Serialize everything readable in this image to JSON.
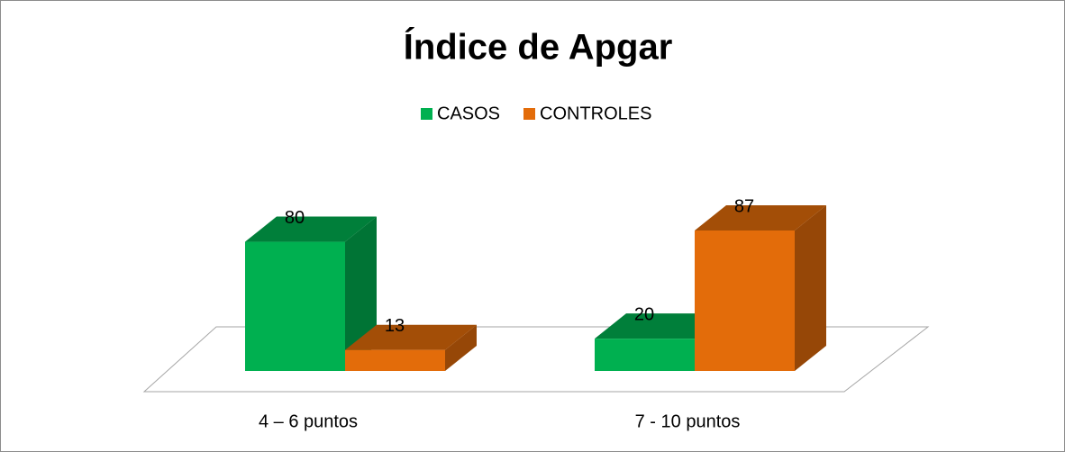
{
  "chart_data": {
    "type": "bar3d",
    "title": "Índice de Apgar",
    "categories": [
      "4 – 6 puntos",
      "7 -  10 puntos"
    ],
    "series": [
      {
        "name": "CASOS",
        "color": "#00b050",
        "values": [
          80,
          20
        ]
      },
      {
        "name": "CONTROLES",
        "color": "#e36c0a",
        "values": [
          13,
          87
        ]
      }
    ],
    "legend": "top"
  }
}
